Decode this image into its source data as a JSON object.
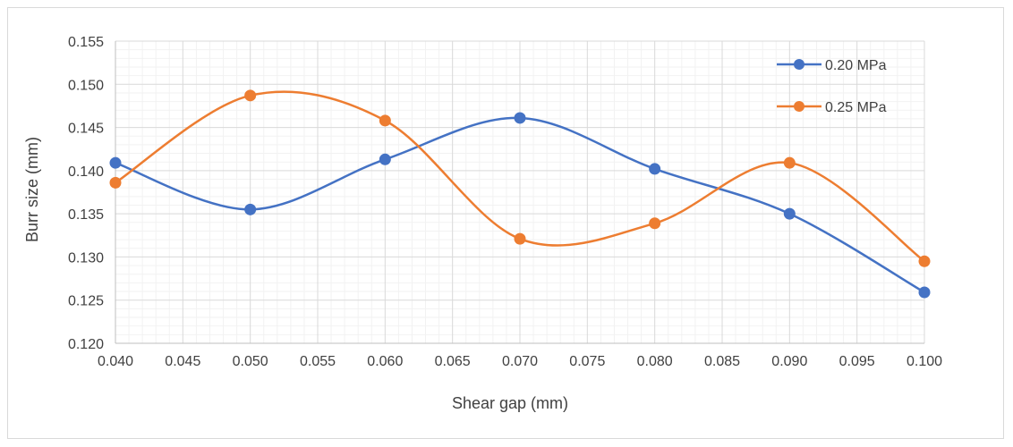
{
  "chart_data": {
    "type": "line",
    "title": "",
    "xlabel": "Shear gap (mm)",
    "ylabel": "Burr size (mm)",
    "xlim": [
      0.04,
      0.1
    ],
    "ylim": [
      0.12,
      0.155
    ],
    "x_ticks": [
      "0.040",
      "0.045",
      "0.050",
      "0.055",
      "0.060",
      "0.065",
      "0.070",
      "0.075",
      "0.080",
      "0.085",
      "0.090",
      "0.095",
      "0.100"
    ],
    "y_ticks": [
      "0.120",
      "0.125",
      "0.130",
      "0.135",
      "0.140",
      "0.145",
      "0.150",
      "0.155"
    ],
    "grid": true,
    "smooth": true,
    "legend_position": "top-right",
    "x": [
      0.04,
      0.05,
      0.06,
      0.07,
      0.08,
      0.09,
      0.1
    ],
    "series": [
      {
        "name": "0.20 MPa",
        "color": "#4472c4",
        "values": [
          0.1409,
          0.1355,
          0.1413,
          0.1461,
          0.1402,
          0.135,
          0.1259
        ]
      },
      {
        "name": "0.25 MPa",
        "color": "#ed7d31",
        "values": [
          0.1386,
          0.1487,
          0.1458,
          0.1321,
          0.1339,
          0.1409,
          0.1295
        ]
      }
    ]
  }
}
